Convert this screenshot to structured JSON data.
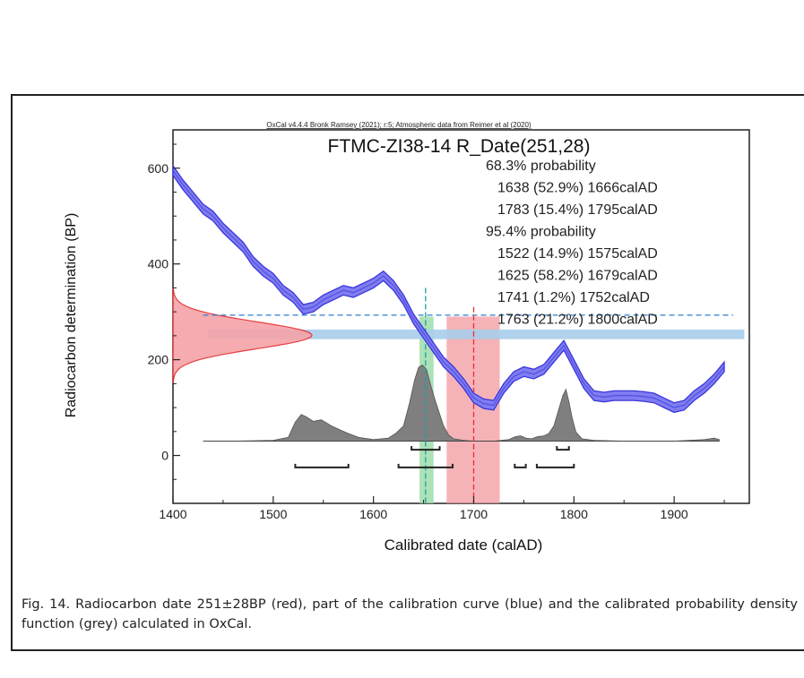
{
  "chart_data": {
    "type": "line",
    "header": "OxCal v4.4.4 Bronk Ramsey (2021); r:5; Atmospheric data from Reimer et al (2020)",
    "title": "FTMC-ZI38-14 R_Date(251,28)",
    "xlabel": "Calibrated date (calAD)",
    "ylabel": "Radiocarbon determination (BP)",
    "xlim": [
      1400,
      1975
    ],
    "ylim": [
      -100,
      680
    ],
    "xticks": [
      1400,
      1500,
      1600,
      1700,
      1800,
      1900
    ],
    "yticks": [
      0,
      200,
      400,
      600
    ],
    "probability_text": [
      "68.3% probability",
      "1638 (52.9%) 1666calAD",
      "1783 (15.4%) 1795calAD",
      "95.4% probability",
      "1522 (14.9%) 1575calAD",
      "1625 (58.2%) 1679calAD",
      "1741 (1.2%) 1752calAD",
      "1763 (21.2%) 1800calAD"
    ],
    "ranges_68": [
      [
        1638,
        1666
      ],
      [
        1783,
        1795
      ]
    ],
    "ranges_95": [
      [
        1522,
        1575
      ],
      [
        1625,
        1679
      ],
      [
        1741,
        1752
      ],
      [
        1763,
        1800
      ]
    ],
    "radiocarbon_date": {
      "mean_bp": 251,
      "sigma_bp": 28
    },
    "series": [
      {
        "name": "calibration curve",
        "x": [
          1400,
          1410,
          1420,
          1430,
          1440,
          1450,
          1460,
          1470,
          1480,
          1490,
          1500,
          1510,
          1520,
          1530,
          1540,
          1550,
          1560,
          1570,
          1580,
          1590,
          1600,
          1610,
          1620,
          1630,
          1640,
          1650,
          1660,
          1670,
          1680,
          1690,
          1700,
          1710,
          1720,
          1730,
          1740,
          1750,
          1760,
          1770,
          1780,
          1790,
          1800,
          1810,
          1820,
          1830,
          1840,
          1850,
          1860,
          1870,
          1880,
          1890,
          1900,
          1910,
          1920,
          1930,
          1940,
          1950
        ],
        "y": [
          595,
          565,
          540,
          515,
          500,
          475,
          455,
          435,
          405,
          385,
          370,
          345,
          330,
          305,
          310,
          325,
          335,
          345,
          340,
          350,
          360,
          375,
          355,
          325,
          285,
          255,
          225,
          195,
          175,
          150,
          120,
          108,
          105,
          140,
          165,
          175,
          170,
          180,
          205,
          230,
          190,
          150,
          125,
          122,
          125,
          125,
          125,
          123,
          120,
          110,
          100,
          105,
          125,
          140,
          160,
          185
        ],
        "band_bp": 10,
        "color": "#3a35dc"
      },
      {
        "name": "calibrated probability",
        "x": [
          1430,
          1460,
          1500,
          1515,
          1522,
          1528,
          1533,
          1540,
          1548,
          1558,
          1568,
          1575,
          1585,
          1600,
          1615,
          1622,
          1630,
          1636,
          1641,
          1645,
          1649,
          1653,
          1657,
          1661,
          1665,
          1670,
          1675,
          1680,
          1690,
          1700,
          1720,
          1735,
          1742,
          1747,
          1752,
          1758,
          1764,
          1770,
          1775,
          1780,
          1785,
          1789,
          1792,
          1795,
          1798,
          1802,
          1808,
          1820,
          1850,
          1900,
          1930,
          1940,
          1945
        ],
        "p": [
          0,
          0,
          1,
          5,
          25,
          35,
          32,
          26,
          28,
          20,
          14,
          10,
          5,
          2,
          4,
          10,
          20,
          50,
          80,
          97,
          100,
          94,
          74,
          56,
          40,
          20,
          8,
          3,
          1,
          0,
          0,
          2,
          6,
          7,
          4,
          3,
          6,
          7,
          10,
          20,
          42,
          60,
          68,
          52,
          32,
          12,
          3,
          1,
          0,
          0,
          2,
          4,
          2
        ],
        "color": "#7f7f7f"
      }
    ],
    "colors": {
      "curve": "#3a35dc",
      "curve_band": "#7f7df0",
      "date_fill": "#f5a3a8",
      "date_line": "#e52b2b",
      "grey_fill": "#7f7f7f",
      "horizontal_band": "#a9cdea",
      "pink_range": "#f29aa0",
      "green_range": "#9fdcaa",
      "teal_line": "#1aa3a1",
      "dashed_line": "#2b7fd1",
      "red_dashed": "#e52b2b"
    },
    "markers": {
      "green_band": [
        1646,
        1660
      ],
      "teal_dash_x": 1652,
      "pink_band": [
        1673,
        1726
      ],
      "red_dash_x": 1700,
      "blue_dash_bp": 293,
      "blue_band_bp": [
        243,
        263
      ]
    }
  },
  "caption": "Fig. 14. Radiocarbon date 251±28BP (red), part of the calibration curve (blue) and the calibrated probability density function (grey) calculated in OxCal."
}
